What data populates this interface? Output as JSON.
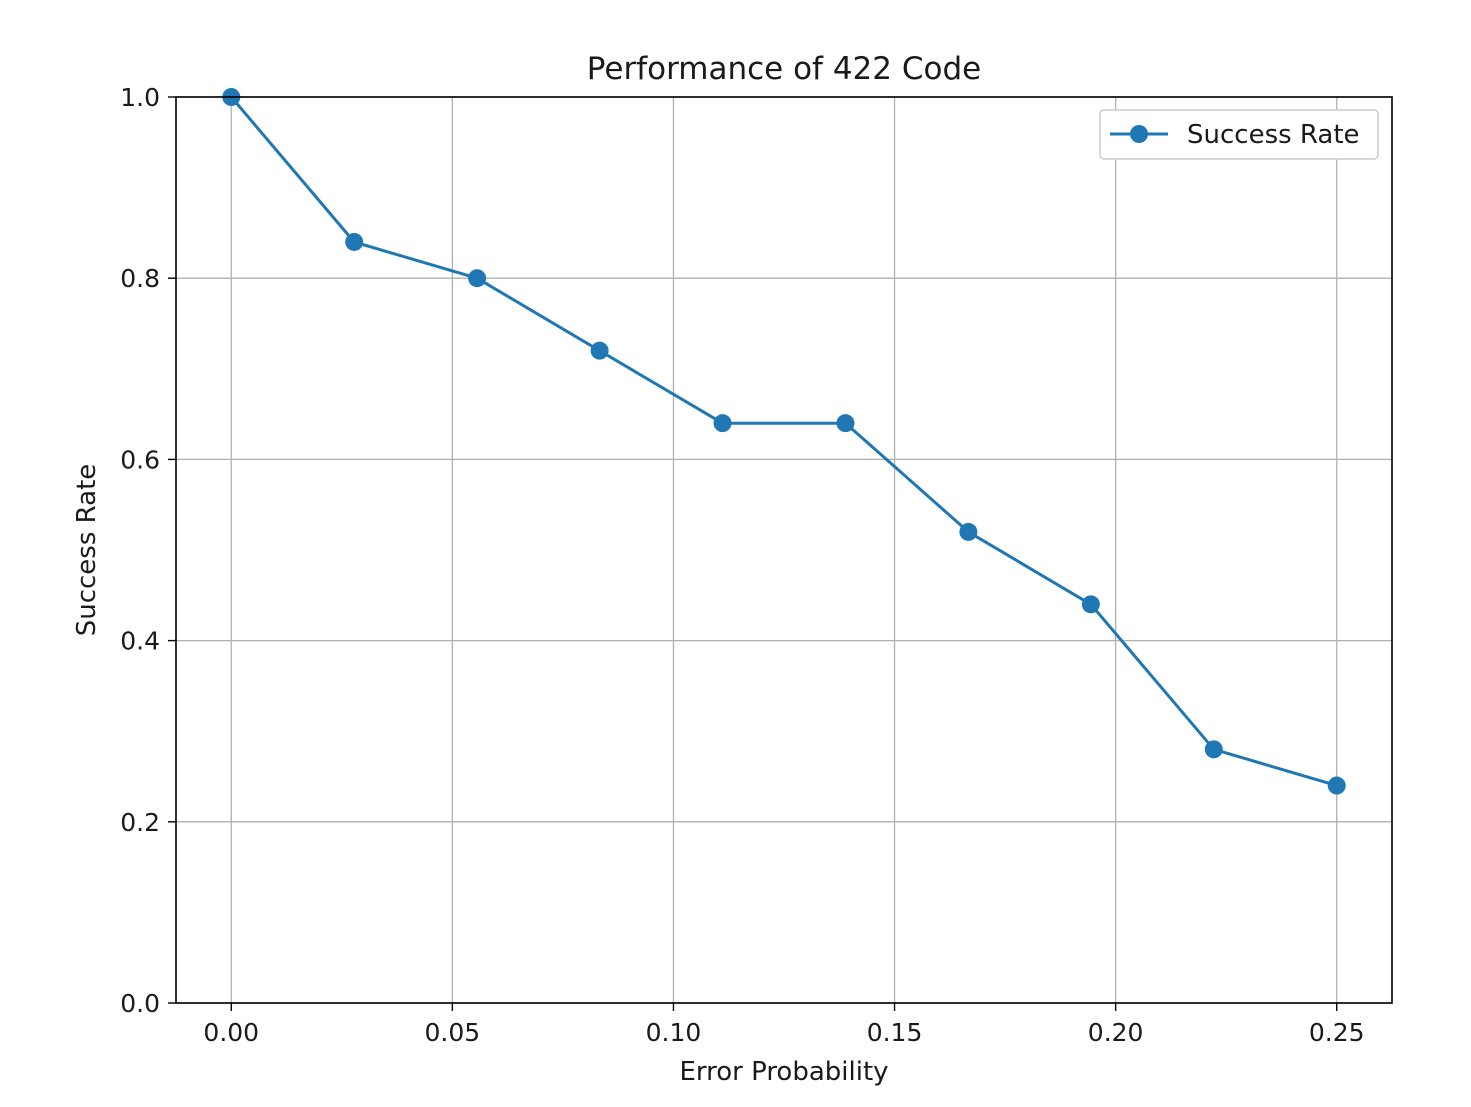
{
  "chart_data": {
    "type": "line",
    "title": "Performance of 422 Code",
    "xlabel": "Error Probability",
    "ylabel": "Success Rate",
    "xlim": [
      -0.0125,
      0.2625
    ],
    "ylim": [
      0.0,
      1.0
    ],
    "xticks": [
      "0.00",
      "0.05",
      "0.10",
      "0.15",
      "0.20",
      "0.25"
    ],
    "yticks": [
      "0.0",
      "0.2",
      "0.4",
      "0.6",
      "0.8",
      "1.0"
    ],
    "grid": true,
    "legend_position": "top-right",
    "series": [
      {
        "name": "Success Rate",
        "color": "#1f77b4",
        "marker": "circle",
        "x": [
          0.0,
          0.0278,
          0.0556,
          0.0833,
          0.1111,
          0.1389,
          0.1667,
          0.1944,
          0.2222,
          0.25
        ],
        "y": [
          1.0,
          0.84,
          0.8,
          0.72,
          0.64,
          0.64,
          0.52,
          0.44,
          0.28,
          0.24
        ]
      }
    ]
  }
}
